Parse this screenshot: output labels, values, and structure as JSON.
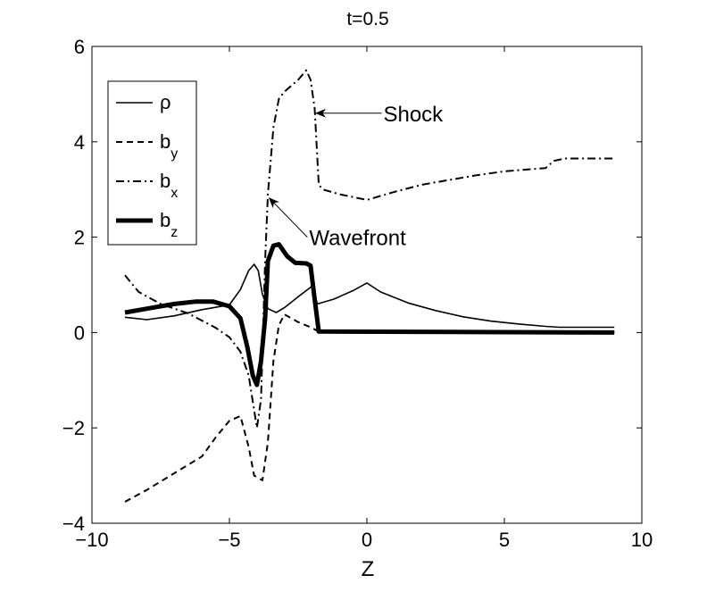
{
  "chart_data": {
    "type": "line",
    "title": "t=0.5",
    "xlabel": "Z",
    "ylabel": "",
    "xlim": [
      -10,
      10
    ],
    "ylim": [
      -4,
      6
    ],
    "x_ticks": [
      -10,
      -5,
      0,
      5,
      10
    ],
    "x_tick_labels": [
      "−10",
      "−5",
      "0",
      "5",
      "10"
    ],
    "y_ticks": [
      -4,
      -2,
      0,
      2,
      4,
      6
    ],
    "y_tick_labels": [
      "−4",
      "−2",
      "0",
      "2",
      "4",
      "6"
    ],
    "grid": false,
    "legend_position": "top-left",
    "series": [
      {
        "name": "ρ",
        "sub": "",
        "style": "solid",
        "width": 1.6,
        "points": [
          [
            -8.8,
            0.32
          ],
          [
            -8,
            0.27
          ],
          [
            -7,
            0.35
          ],
          [
            -6,
            0.48
          ],
          [
            -5,
            0.58
          ],
          [
            -4.6,
            0.9
          ],
          [
            -4.3,
            1.3
          ],
          [
            -4.1,
            1.43
          ],
          [
            -3.95,
            1.3
          ],
          [
            -3.8,
            0.8
          ],
          [
            -3.6,
            0.5
          ],
          [
            -3.3,
            0.42
          ],
          [
            -3,
            0.52
          ],
          [
            -2.5,
            0.75
          ],
          [
            -2,
            0.97
          ],
          [
            -1.8,
            0.6
          ],
          [
            -1.2,
            0.7
          ],
          [
            -0.5,
            0.88
          ],
          [
            0,
            1.04
          ],
          [
            0.5,
            0.85
          ],
          [
            1.5,
            0.62
          ],
          [
            2.5,
            0.46
          ],
          [
            3.5,
            0.33
          ],
          [
            4.5,
            0.24
          ],
          [
            5.5,
            0.18
          ],
          [
            6.5,
            0.13
          ],
          [
            7,
            0.11
          ],
          [
            9,
            0.11
          ]
        ]
      },
      {
        "name": "b",
        "sub": "y",
        "style": "dashed",
        "width": 2,
        "points": [
          [
            -8.8,
            -3.55
          ],
          [
            -8,
            -3.3
          ],
          [
            -7,
            -2.95
          ],
          [
            -6,
            -2.6
          ],
          [
            -5.5,
            -2.2
          ],
          [
            -5,
            -1.85
          ],
          [
            -4.6,
            -1.75
          ],
          [
            -4.3,
            -2.4
          ],
          [
            -4.1,
            -3
          ],
          [
            -3.8,
            -3.1
          ],
          [
            -3.6,
            -2.3
          ],
          [
            -3.4,
            -0.6
          ],
          [
            -3.2,
            0.15
          ],
          [
            -3,
            0.38
          ],
          [
            -2.5,
            0.22
          ],
          [
            -2,
            0.1
          ],
          [
            -1.7,
            0
          ],
          [
            9,
            0
          ]
        ]
      },
      {
        "name": "b",
        "sub": "x",
        "style": "dashdot",
        "width": 2,
        "points": [
          [
            -8.8,
            1.2
          ],
          [
            -8.3,
            0.85
          ],
          [
            -7.5,
            0.6
          ],
          [
            -6.5,
            0.4
          ],
          [
            -5.5,
            0.1
          ],
          [
            -5,
            -0.1
          ],
          [
            -4.6,
            -0.4
          ],
          [
            -4.3,
            -0.9
          ],
          [
            -4,
            -2
          ],
          [
            -3.85,
            -1.4
          ],
          [
            -3.7,
            1.5
          ],
          [
            -3.6,
            2.9
          ],
          [
            -3.4,
            4.3
          ],
          [
            -3.2,
            4.9
          ],
          [
            -3,
            5.05
          ],
          [
            -2.5,
            5.3
          ],
          [
            -2.2,
            5.5
          ],
          [
            -2.05,
            5.3
          ],
          [
            -1.9,
            4.7
          ],
          [
            -1.75,
            3.1
          ],
          [
            -1.6,
            3.0
          ],
          [
            -1,
            2.9
          ],
          [
            0,
            2.78
          ],
          [
            1,
            2.95
          ],
          [
            2,
            3.1
          ],
          [
            3,
            3.2
          ],
          [
            4,
            3.3
          ],
          [
            5,
            3.38
          ],
          [
            6.5,
            3.45
          ],
          [
            6.8,
            3.6
          ],
          [
            7.2,
            3.65
          ],
          [
            9,
            3.65
          ]
        ]
      },
      {
        "name": "b",
        "sub": "z",
        "style": "solid",
        "width": 5,
        "points": [
          [
            -8.8,
            0.42
          ],
          [
            -8,
            0.5
          ],
          [
            -7,
            0.6
          ],
          [
            -6.2,
            0.65
          ],
          [
            -5.6,
            0.65
          ],
          [
            -5,
            0.55
          ],
          [
            -4.6,
            0.3
          ],
          [
            -4.35,
            -0.3
          ],
          [
            -4.15,
            -0.9
          ],
          [
            -4,
            -1.1
          ],
          [
            -3.85,
            -0.6
          ],
          [
            -3.7,
            0.3
          ],
          [
            -3.6,
            1.5
          ],
          [
            -3.4,
            1.82
          ],
          [
            -3.2,
            1.85
          ],
          [
            -2.9,
            1.6
          ],
          [
            -2.6,
            1.46
          ],
          [
            -2.2,
            1.45
          ],
          [
            -2.05,
            1.4
          ],
          [
            -1.9,
            0.7
          ],
          [
            -1.75,
            0.02
          ],
          [
            9,
            0.0
          ]
        ]
      }
    ],
    "annotations": [
      {
        "text": "Shock",
        "text_x": 0.6,
        "text_y": 4.6,
        "head_x": -1.85,
        "head_y": 4.6
      },
      {
        "text": "Wavefront",
        "text_x": -2.1,
        "text_y": 2.0,
        "head_x": -3.55,
        "head_y": 2.82
      }
    ]
  }
}
